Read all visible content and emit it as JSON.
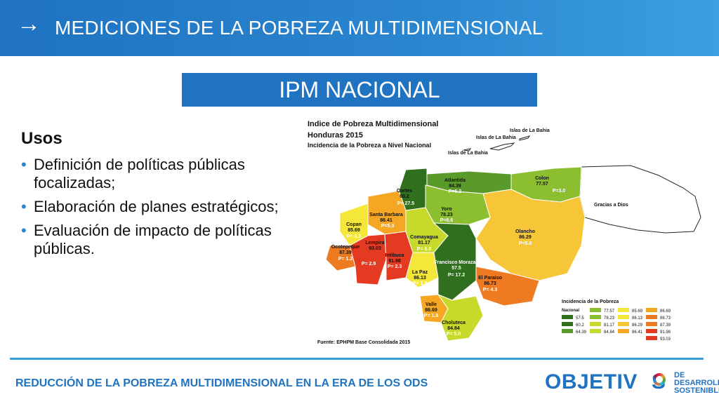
{
  "header": {
    "arrow": "→",
    "title": "MEDICIONES DE LA POBREZA MULTIDIMENSIONAL"
  },
  "box": {
    "label": "IPM NACIONAL"
  },
  "usos": {
    "heading": "Usos",
    "items": [
      "Definición de políticas públicas focalizadas;",
      "Elaboración de planes estratégicos;",
      "Evaluación de impacto de políticas públicas."
    ]
  },
  "map": {
    "title1": "Indice de Pobreza Multidimensional",
    "title2": "Honduras 2015",
    "title3": "Incidencia de la Pobreza a Nivel Nacional",
    "islands1": "Islas de La Bahia",
    "islands2": "Islas de La Bahia",
    "islands3": "Islas de La Bahia",
    "gracias": "Gracias a Dios",
    "source": "Fuente: EPHPM Base Consolidada 2015",
    "regions": {
      "atlantida": [
        "Atlantida",
        "84.39",
        "P=6.2"
      ],
      "colon": [
        "Colon",
        "77.57",
        "P=3.0"
      ],
      "cortes": [
        "Cortes",
        "60.2",
        "P= 27.5"
      ],
      "yoro": [
        "Yoro",
        "78.23",
        "P=6.6"
      ],
      "santa_barbara": [
        "Santa Barbara",
        "86.41",
        "P=5.3"
      ],
      "copan": [
        "Copan",
        "85.69",
        "P= 3.2"
      ],
      "ocotepeque": [
        "Ocotepeque",
        "87.39",
        "P= 1.2"
      ],
      "lempira": [
        "Lempira",
        "93.03"
      ],
      "lempira_p": "P= 2.9",
      "intibuca": [
        "Intibuca",
        "91.98",
        "P= 2.3"
      ],
      "comayagua": [
        "Comayagua",
        "81.17",
        "P= 6.0"
      ],
      "olancho": [
        "Olancho",
        "86.29",
        "P=5.0"
      ],
      "fco_morazan": [
        "Francisco Morazan",
        "57.5",
        "P= 17.2"
      ],
      "la_paz": [
        "La Paz",
        "86.13",
        "P= 1.9"
      ],
      "el_paraiso": [
        "El Paraiso",
        "86.73",
        "P= 4.3"
      ],
      "valle": [
        "Valle",
        "86.69",
        "P= 1.8"
      ],
      "choluteca": [
        "Choluteca",
        "84.84",
        "P= 5.0"
      ]
    },
    "legend": {
      "title": "Incidencia de la Pobreza",
      "nacional": "Nacional",
      "col1": [
        "57.5",
        "60.2",
        "64.39"
      ],
      "col2": [
        "77.57",
        "78.23",
        "81.17",
        "84.84"
      ],
      "col3": [
        "85.69",
        "86.13",
        "86.29",
        "86.41"
      ],
      "col4": [
        "86.69",
        "86.73",
        "87.39",
        "91.98",
        "93.03"
      ]
    },
    "colors": {
      "dark_green": "#2f6f1e",
      "green": "#5a9a2a",
      "light_green": "#8cbf2f",
      "yellow_green": "#c7d92a",
      "yellow": "#f5e63a",
      "light_orange": "#f7c638",
      "orange": "#f5a623",
      "dark_orange": "#ee7a22",
      "red": "#e53a22"
    }
  },
  "footer": {
    "text": "REDUCCIÓN DE LA POBREZA MULTIDIMENSIONAL EN LA ERA DE LOS ODS",
    "logo_big": "OBJETIV",
    "logo_big2": "S",
    "logo_small1": "DE DESARROLLO",
    "logo_small2": "SOSTENIBLE"
  }
}
